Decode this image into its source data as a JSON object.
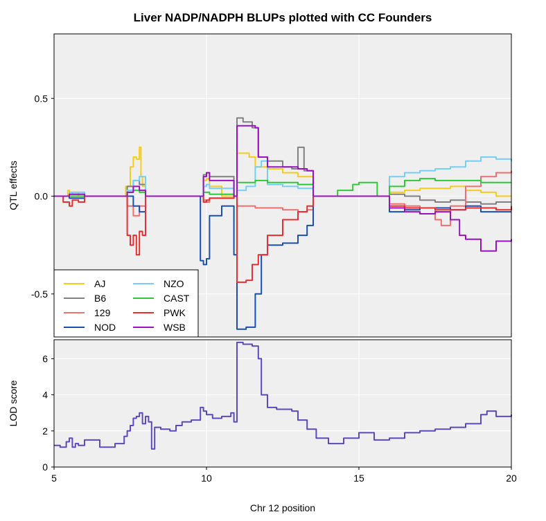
{
  "chart_data": [
    {
      "type": "line",
      "title": "Liver NADP/NADPH BLUPs plotted with CC Founders",
      "xlabel": "",
      "ylabel": "QTL effects",
      "xlim": [
        5,
        20
      ],
      "ylim": [
        -0.72,
        0.83
      ],
      "yticks": [
        "-0.5",
        "0.0",
        "0.5"
      ],
      "ytick_values": [
        -0.5,
        0.0,
        0.5
      ],
      "grid": true,
      "legend": "bottom-left",
      "series": [
        {
          "name": "AJ",
          "color": "#F5CC1A",
          "x": [
            5.0,
            5.4,
            5.45,
            5.5,
            5.6,
            5.8,
            6.0,
            7.3,
            7.35,
            7.5,
            7.6,
            7.7,
            7.8,
            7.85,
            7.9,
            8.0,
            8.5,
            9.8,
            9.9,
            10.0,
            10.1,
            10.5,
            10.9,
            11.0,
            11.3,
            11.4,
            11.6,
            12.0,
            12.5,
            13.0,
            13.3,
            13.5,
            14.0,
            14.5,
            15.0,
            15.6,
            16.0,
            16.5,
            17.0,
            17.5,
            18.0,
            18.5,
            19.0,
            19.5,
            20.0
          ],
          "y": [
            0,
            0,
            0.03,
            0.01,
            0.02,
            0,
            0,
            0,
            0.05,
            0.15,
            0.2,
            0.19,
            0.25,
            0.1,
            0.05,
            0,
            0,
            0,
            0.08,
            0.09,
            0.05,
            0,
            0,
            0.22,
            0.22,
            0.2,
            0.15,
            0.14,
            0.12,
            0.1,
            0.1,
            0,
            0,
            0,
            0,
            0,
            0.02,
            0.03,
            0.04,
            0.04,
            0.05,
            0.03,
            0.02,
            0.0,
            0.0
          ]
        },
        {
          "name": "B6",
          "color": "#808080",
          "x": [
            5.0,
            5.5,
            6.0,
            7.4,
            7.6,
            7.8,
            8.0,
            9.9,
            10.0,
            10.1,
            10.9,
            11.0,
            11.2,
            11.5,
            11.7,
            12.0,
            12.5,
            12.8,
            13.0,
            13.2,
            13.5,
            14.0,
            14.5,
            15.0,
            15.6,
            16.0,
            16.5,
            17.0,
            17.5,
            18.0,
            18.5,
            19.0,
            19.5,
            20.0
          ],
          "y": [
            0,
            0.01,
            0,
            0.05,
            0.08,
            0.06,
            0,
            0.11,
            0.12,
            0.1,
            0,
            0.4,
            0.38,
            0.35,
            0.2,
            0.18,
            0.15,
            0.14,
            0.25,
            0.13,
            0,
            0,
            0,
            0,
            0,
            0.01,
            0.0,
            -0.02,
            -0.03,
            -0.02,
            -0.03,
            -0.04,
            -0.03,
            -0.03
          ]
        },
        {
          "name": "129",
          "color": "#EF6E6E",
          "x": [
            5.0,
            5.5,
            6.0,
            7.4,
            7.6,
            7.8,
            8.0,
            9.9,
            10.0,
            10.1,
            10.9,
            11.0,
            11.3,
            11.6,
            12.0,
            12.5,
            13.0,
            13.3,
            13.5,
            14.0,
            14.5,
            15.0,
            15.6,
            16.0,
            16.5,
            17.0,
            17.5,
            17.7,
            18.0,
            18.5,
            19.0,
            19.5,
            20.0
          ],
          "y": [
            0,
            -0.01,
            0,
            -0.05,
            -0.1,
            -0.05,
            0,
            -0.02,
            -0.03,
            -0.01,
            0,
            -0.05,
            -0.05,
            -0.06,
            -0.06,
            -0.07,
            -0.08,
            -0.07,
            0,
            0,
            0,
            0,
            0,
            -0.04,
            -0.05,
            -0.06,
            -0.12,
            -0.15,
            -0.05,
            0.05,
            0.1,
            0.12,
            0.13
          ]
        },
        {
          "name": "NOD",
          "color": "#1A4FB0",
          "x": [
            5.0,
            5.5,
            6.0,
            7.4,
            7.6,
            7.8,
            8.0,
            9.0,
            9.5,
            9.8,
            9.9,
            10.0,
            10.1,
            10.5,
            10.9,
            11.0,
            11.3,
            11.6,
            11.8,
            12.0,
            12.5,
            13.0,
            13.3,
            13.5,
            14.0,
            14.5,
            15.0,
            15.6,
            16.0,
            16.5,
            17.0,
            17.5,
            18.0,
            18.5,
            19.0,
            19.5,
            20.0
          ],
          "y": [
            0,
            -0.01,
            0,
            0,
            -0.05,
            -0.08,
            0,
            0,
            0,
            -0.33,
            -0.35,
            -0.32,
            -0.1,
            -0.05,
            -0.3,
            -0.68,
            -0.67,
            -0.5,
            -0.3,
            -0.25,
            -0.24,
            -0.2,
            -0.15,
            0,
            0,
            0,
            0,
            0,
            -0.08,
            -0.07,
            -0.06,
            -0.06,
            -0.07,
            -0.05,
            -0.08,
            -0.08,
            -0.08
          ]
        },
        {
          "name": "NZO",
          "color": "#75CEF5",
          "x": [
            5.0,
            5.5,
            6.0,
            7.4,
            7.6,
            7.8,
            8.0,
            9.9,
            10.0,
            10.1,
            10.9,
            11.0,
            11.3,
            11.6,
            11.8,
            12.0,
            12.5,
            13.0,
            13.5,
            14.0,
            14.5,
            15.0,
            15.6,
            16.0,
            16.5,
            17.0,
            17.5,
            18.0,
            18.5,
            19.0,
            19.5,
            20.0
          ],
          "y": [
            0,
            0.02,
            0,
            0.03,
            0.08,
            0.1,
            0,
            0.05,
            0.06,
            0.04,
            0,
            0.03,
            0.05,
            0.15,
            0.18,
            0.06,
            0.05,
            0.04,
            0,
            0,
            0,
            0,
            0,
            0.1,
            0.12,
            0.13,
            0.14,
            0.15,
            0.18,
            0.2,
            0.19,
            0.18
          ]
        },
        {
          "name": "CAST",
          "color": "#2FC838",
          "x": [
            5.0,
            5.5,
            6.0,
            7.4,
            7.6,
            7.8,
            8.0,
            9.9,
            10.0,
            10.1,
            10.9,
            11.0,
            11.3,
            11.6,
            12.0,
            12.5,
            13.0,
            13.5,
            14.0,
            14.3,
            14.8,
            15.0,
            15.6,
            16.0,
            16.5,
            17.0,
            17.5,
            18.0,
            18.5,
            19.0,
            19.5,
            20.0
          ],
          "y": [
            0,
            0,
            0,
            0.02,
            0.03,
            0.02,
            0,
            0.02,
            0.02,
            0.01,
            0,
            0.07,
            0.07,
            0.08,
            0.07,
            0.07,
            0.06,
            0,
            0,
            0.03,
            0.06,
            0.07,
            0,
            0.05,
            0.08,
            0.09,
            0.08,
            0.08,
            0.08,
            0.07,
            0.07,
            0.07
          ]
        },
        {
          "name": "PWK",
          "color": "#E82E2E",
          "x": [
            5.0,
            5.3,
            5.5,
            5.6,
            5.8,
            6.0,
            7.3,
            7.4,
            7.5,
            7.6,
            7.7,
            7.8,
            7.9,
            8.0,
            9.0,
            9.9,
            10.0,
            10.1,
            10.9,
            11.0,
            11.3,
            11.5,
            11.7,
            12.0,
            12.5,
            13.0,
            13.3,
            13.5,
            14.0,
            14.5,
            15.0,
            15.6,
            16.0,
            16.5,
            17.0,
            17.5,
            18.0,
            18.5,
            19.0,
            19.5,
            20.0
          ],
          "y": [
            0,
            -0.03,
            -0.05,
            -0.02,
            -0.03,
            0,
            0,
            -0.2,
            -0.25,
            -0.2,
            -0.3,
            -0.18,
            -0.2,
            0,
            0,
            -0.03,
            -0.02,
            -0.01,
            0,
            -0.44,
            -0.43,
            -0.35,
            -0.3,
            -0.2,
            -0.12,
            -0.08,
            -0.05,
            0,
            0,
            0,
            0,
            0,
            -0.05,
            -0.06,
            -0.06,
            -0.07,
            -0.07,
            -0.06,
            -0.06,
            -0.07,
            -0.05
          ]
        },
        {
          "name": "WSB",
          "color": "#9B11C2",
          "x": [
            5.0,
            5.5,
            6.0,
            7.4,
            7.6,
            7.8,
            8.0,
            9.9,
            10.0,
            10.1,
            10.9,
            11.0,
            11.3,
            11.6,
            11.7,
            12.0,
            12.5,
            13.0,
            13.3,
            13.5,
            14.0,
            14.5,
            15.0,
            15.6,
            16.0,
            16.5,
            17.0,
            17.5,
            18.0,
            18.3,
            18.5,
            19.0,
            19.5,
            20.0
          ],
          "y": [
            0,
            0.01,
            0,
            0.02,
            0.05,
            0.03,
            0,
            0.1,
            0.12,
            0.08,
            0,
            0.36,
            0.36,
            0.35,
            0.2,
            0.15,
            0.15,
            0.14,
            0.13,
            0,
            0,
            0,
            0,
            0,
            -0.06,
            -0.08,
            -0.09,
            -0.08,
            -0.12,
            -0.2,
            -0.22,
            -0.28,
            -0.23,
            -0.22
          ]
        }
      ]
    },
    {
      "type": "line",
      "title": "",
      "xlabel": "Chr 12 position",
      "ylabel": "LOD score",
      "xlim": [
        5,
        20
      ],
      "ylim": [
        0,
        7.05
      ],
      "xticks": [
        "5",
        "10",
        "15",
        "20"
      ],
      "xtick_values": [
        5,
        10,
        15,
        20
      ],
      "yticks": [
        "0",
        "2",
        "4",
        "6"
      ],
      "ytick_values": [
        0,
        2,
        4,
        6
      ],
      "grid": true,
      "series": [
        {
          "name": "",
          "color": "#5C49BE",
          "x": [
            5.0,
            5.2,
            5.4,
            5.5,
            5.6,
            5.7,
            5.8,
            6.0,
            6.5,
            7.0,
            7.3,
            7.4,
            7.5,
            7.6,
            7.7,
            7.8,
            7.9,
            8.0,
            8.1,
            8.2,
            8.3,
            8.5,
            8.8,
            9.0,
            9.2,
            9.5,
            9.8,
            9.9,
            10.0,
            10.2,
            10.5,
            10.8,
            10.9,
            11.0,
            11.2,
            11.5,
            11.7,
            11.8,
            12.0,
            12.3,
            12.8,
            13.0,
            13.3,
            13.6,
            14.0,
            14.5,
            15.0,
            15.5,
            16.0,
            16.5,
            17.0,
            17.5,
            18.0,
            18.5,
            19.0,
            19.2,
            19.5,
            20.0
          ],
          "y": [
            1.2,
            1.1,
            1.4,
            1.6,
            1.1,
            1.3,
            1.2,
            1.5,
            1.1,
            1.3,
            1.7,
            2.0,
            2.3,
            2.7,
            2.8,
            3.0,
            2.4,
            2.8,
            2.5,
            1.0,
            2.2,
            2.1,
            2.0,
            2.3,
            2.5,
            2.6,
            3.3,
            3.1,
            2.9,
            2.7,
            2.8,
            3.0,
            2.5,
            6.9,
            6.8,
            6.7,
            6.0,
            4.0,
            3.3,
            3.2,
            3.1,
            2.6,
            2.1,
            1.6,
            1.3,
            1.6,
            1.9,
            1.5,
            1.6,
            1.9,
            2.0,
            2.1,
            2.2,
            2.4,
            2.9,
            3.1,
            2.8,
            2.9
          ]
        }
      ]
    }
  ]
}
